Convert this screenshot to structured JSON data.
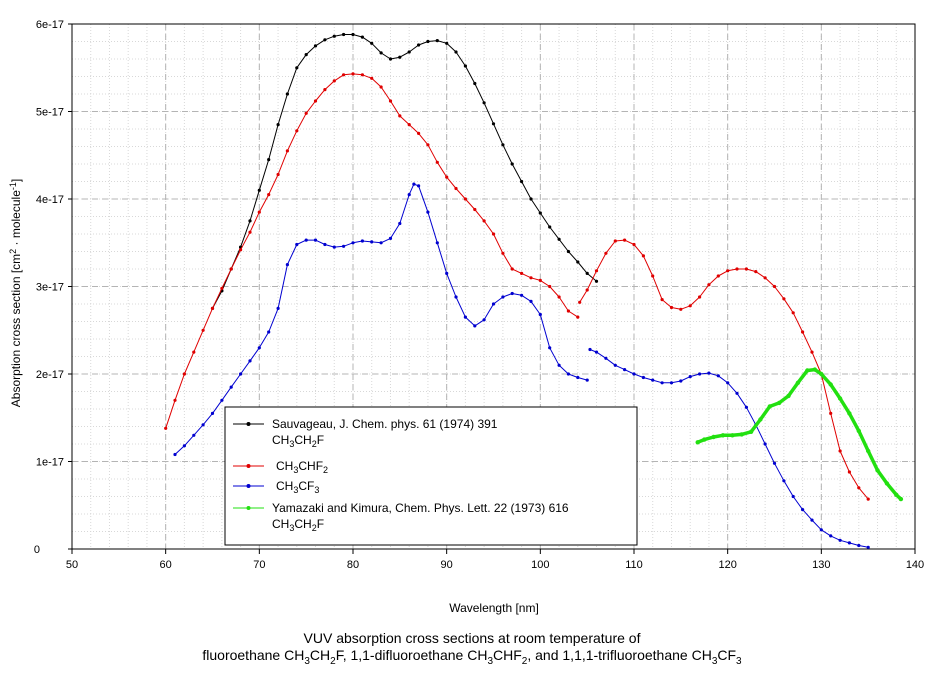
{
  "chart_data": {
    "type": "line",
    "xlabel": "Wavelength [nm]",
    "ylabel": "Absorption cross section [cm2 · molecule-1]",
    "xlim": [
      50,
      140
    ],
    "ylim": [
      0,
      6e-17
    ],
    "x_ticks": [
      50,
      60,
      70,
      80,
      90,
      100,
      110,
      120,
      130,
      140
    ],
    "y_ticks": [
      {
        "value": 0,
        "label": "0"
      },
      {
        "value": 1e-17,
        "label": "1e-17"
      },
      {
        "value": 2e-17,
        "label": "2e-17"
      },
      {
        "value": 3e-17,
        "label": "3e-17"
      },
      {
        "value": 4e-17,
        "label": "4e-17"
      },
      {
        "value": 5e-17,
        "label": "5e-17"
      },
      {
        "value": 6e-17,
        "label": "6e-17"
      }
    ],
    "grid": true,
    "legend_position": "lower-left",
    "series": [
      {
        "name": "Sauvageau, J. Chem. phys. 61 (1974) 391",
        "molecule": "CH3CH2F",
        "color": "#000000",
        "points": [
          [
            65.0,
            2.75e-17
          ],
          [
            66.0,
            2.95e-17
          ],
          [
            67.0,
            3.2e-17
          ],
          [
            68.0,
            3.45e-17
          ],
          [
            69.0,
            3.75e-17
          ],
          [
            70.0,
            4.1e-17
          ],
          [
            71.0,
            4.45e-17
          ],
          [
            72.0,
            4.85e-17
          ],
          [
            73.0,
            5.2e-17
          ],
          [
            74.0,
            5.5e-17
          ],
          [
            75.0,
            5.65e-17
          ],
          [
            76.0,
            5.75e-17
          ],
          [
            77.0,
            5.82e-17
          ],
          [
            78.0,
            5.86e-17
          ],
          [
            79.0,
            5.88e-17
          ],
          [
            80.0,
            5.88e-17
          ],
          [
            81.0,
            5.85e-17
          ],
          [
            82.0,
            5.78e-17
          ],
          [
            83.0,
            5.67e-17
          ],
          [
            84.0,
            5.6e-17
          ],
          [
            85.0,
            5.62e-17
          ],
          [
            86.0,
            5.68e-17
          ],
          [
            87.0,
            5.76e-17
          ],
          [
            88.0,
            5.8e-17
          ],
          [
            89.0,
            5.81e-17
          ],
          [
            90.0,
            5.78e-17
          ],
          [
            91.0,
            5.68e-17
          ],
          [
            92.0,
            5.52e-17
          ],
          [
            93.0,
            5.32e-17
          ],
          [
            94.0,
            5.1e-17
          ],
          [
            95.0,
            4.86e-17
          ],
          [
            96.0,
            4.62e-17
          ],
          [
            97.0,
            4.4e-17
          ],
          [
            98.0,
            4.2e-17
          ],
          [
            99.0,
            4e-17
          ],
          [
            100.0,
            3.84e-17
          ],
          [
            101.0,
            3.68e-17
          ],
          [
            102.0,
            3.54e-17
          ],
          [
            103.0,
            3.4e-17
          ],
          [
            104.0,
            3.28e-17
          ],
          [
            105.0,
            3.15e-17
          ],
          [
            106.0,
            3.06e-17
          ]
        ]
      },
      {
        "name": "CH3CHF2",
        "molecule": "",
        "color": "#e00000",
        "points": [
          [
            60.0,
            1.38e-17
          ],
          [
            61.0,
            1.7e-17
          ],
          [
            62.0,
            2e-17
          ],
          [
            63.0,
            2.25e-17
          ],
          [
            64.0,
            2.5e-17
          ],
          [
            65.0,
            2.75e-17
          ],
          [
            66.0,
            2.98e-17
          ],
          [
            67.0,
            3.2e-17
          ],
          [
            68.0,
            3.42e-17
          ],
          [
            69.0,
            3.62e-17
          ],
          [
            70.0,
            3.85e-17
          ],
          [
            71.0,
            4.05e-17
          ],
          [
            72.0,
            4.28e-17
          ],
          [
            73.0,
            4.55e-17
          ],
          [
            74.0,
            4.78e-17
          ],
          [
            75.0,
            4.98e-17
          ],
          [
            76.0,
            5.12e-17
          ],
          [
            77.0,
            5.25e-17
          ],
          [
            78.0,
            5.35e-17
          ],
          [
            79.0,
            5.42e-17
          ],
          [
            80.0,
            5.43e-17
          ],
          [
            81.0,
            5.42e-17
          ],
          [
            82.0,
            5.38e-17
          ],
          [
            83.0,
            5.28e-17
          ],
          [
            84.0,
            5.12e-17
          ],
          [
            85.0,
            4.95e-17
          ],
          [
            86.0,
            4.85e-17
          ],
          [
            87.0,
            4.75e-17
          ],
          [
            88.0,
            4.62e-17
          ],
          [
            89.0,
            4.42e-17
          ],
          [
            90.0,
            4.25e-17
          ],
          [
            91.0,
            4.12e-17
          ],
          [
            92.0,
            4e-17
          ],
          [
            93.0,
            3.88e-17
          ],
          [
            94.0,
            3.75e-17
          ],
          [
            95.0,
            3.6e-17
          ],
          [
            96.0,
            3.38e-17
          ],
          [
            97.0,
            3.2e-17
          ],
          [
            98.0,
            3.15e-17
          ],
          [
            99.0,
            3.1e-17
          ],
          [
            100.0,
            3.07e-17
          ],
          [
            101.0,
            3e-17
          ],
          [
            102.0,
            2.88e-17
          ],
          [
            103.0,
            2.72e-17
          ],
          [
            104.0,
            2.65e-17
          ],
          [
            104.2,
            2.82e-17
          ],
          [
            105.0,
            2.96e-17
          ],
          [
            106.0,
            3.18e-17
          ],
          [
            107.0,
            3.38e-17
          ],
          [
            108.0,
            3.52e-17
          ],
          [
            109.0,
            3.53e-17
          ],
          [
            110.0,
            3.48e-17
          ],
          [
            111.0,
            3.35e-17
          ],
          [
            112.0,
            3.12e-17
          ],
          [
            113.0,
            2.85e-17
          ],
          [
            114.0,
            2.76e-17
          ],
          [
            115.0,
            2.74e-17
          ],
          [
            116.0,
            2.78e-17
          ],
          [
            117.0,
            2.88e-17
          ],
          [
            118.0,
            3.02e-17
          ],
          [
            119.0,
            3.12e-17
          ],
          [
            120.0,
            3.18e-17
          ],
          [
            121.0,
            3.2e-17
          ],
          [
            122.0,
            3.2e-17
          ],
          [
            123.0,
            3.17e-17
          ],
          [
            124.0,
            3.1e-17
          ],
          [
            125.0,
            3e-17
          ],
          [
            126.0,
            2.86e-17
          ],
          [
            127.0,
            2.7e-17
          ],
          [
            128.0,
            2.48e-17
          ],
          [
            129.0,
            2.25e-17
          ],
          [
            130.0,
            2e-17
          ],
          [
            131.0,
            1.55e-17
          ],
          [
            132.0,
            1.12e-17
          ],
          [
            133.0,
            8.8e-18
          ],
          [
            134.0,
            7e-18
          ],
          [
            135.0,
            5.7e-18
          ]
        ]
      },
      {
        "name": "CH3CF3",
        "molecule": "",
        "color": "#0000d0",
        "points": [
          [
            61.0,
            1.08e-17
          ],
          [
            62.0,
            1.18e-17
          ],
          [
            63.0,
            1.3e-17
          ],
          [
            64.0,
            1.42e-17
          ],
          [
            65.0,
            1.55e-17
          ],
          [
            66.0,
            1.7e-17
          ],
          [
            67.0,
            1.85e-17
          ],
          [
            68.0,
            2e-17
          ],
          [
            69.0,
            2.15e-17
          ],
          [
            70.0,
            2.3e-17
          ],
          [
            71.0,
            2.48e-17
          ],
          [
            72.0,
            2.75e-17
          ],
          [
            73.0,
            3.25e-17
          ],
          [
            74.0,
            3.48e-17
          ],
          [
            75.0,
            3.53e-17
          ],
          [
            76.0,
            3.53e-17
          ],
          [
            77.0,
            3.48e-17
          ],
          [
            78.0,
            3.45e-17
          ],
          [
            79.0,
            3.46e-17
          ],
          [
            80.0,
            3.5e-17
          ],
          [
            81.0,
            3.52e-17
          ],
          [
            82.0,
            3.51e-17
          ],
          [
            83.0,
            3.5e-17
          ],
          [
            84.0,
            3.55e-17
          ],
          [
            85.0,
            3.72e-17
          ],
          [
            86.0,
            4.05e-17
          ],
          [
            86.5,
            4.17e-17
          ],
          [
            87.0,
            4.15e-17
          ],
          [
            88.0,
            3.85e-17
          ],
          [
            89.0,
            3.5e-17
          ],
          [
            90.0,
            3.15e-17
          ],
          [
            91.0,
            2.88e-17
          ],
          [
            92.0,
            2.65e-17
          ],
          [
            93.0,
            2.55e-17
          ],
          [
            94.0,
            2.62e-17
          ],
          [
            95.0,
            2.8e-17
          ],
          [
            96.0,
            2.88e-17
          ],
          [
            97.0,
            2.92e-17
          ],
          [
            98.0,
            2.9e-17
          ],
          [
            99.0,
            2.83e-17
          ],
          [
            100.0,
            2.68e-17
          ],
          [
            101.0,
            2.3e-17
          ],
          [
            102.0,
            2.1e-17
          ],
          [
            103.0,
            2e-17
          ],
          [
            104.0,
            1.96e-17
          ],
          [
            105.0,
            1.93e-17
          ],
          [
            105.3,
            2.28e-17
          ],
          [
            106.0,
            2.25e-17
          ],
          [
            107.0,
            2.18e-17
          ],
          [
            108.0,
            2.1e-17
          ],
          [
            109.0,
            2.05e-17
          ],
          [
            110.0,
            2e-17
          ],
          [
            111.0,
            1.96e-17
          ],
          [
            112.0,
            1.93e-17
          ],
          [
            113.0,
            1.9e-17
          ],
          [
            114.0,
            1.9e-17
          ],
          [
            115.0,
            1.92e-17
          ],
          [
            116.0,
            1.97e-17
          ],
          [
            117.0,
            2e-17
          ],
          [
            118.0,
            2.01e-17
          ],
          [
            119.0,
            1.98e-17
          ],
          [
            120.0,
            1.9e-17
          ],
          [
            121.0,
            1.78e-17
          ],
          [
            122.0,
            1.62e-17
          ],
          [
            123.0,
            1.42e-17
          ],
          [
            124.0,
            1.2e-17
          ],
          [
            125.0,
            9.8e-18
          ],
          [
            126.0,
            7.8e-18
          ],
          [
            127.0,
            6e-18
          ],
          [
            128.0,
            4.5e-18
          ],
          [
            129.0,
            3.3e-18
          ],
          [
            130.0,
            2.2e-18
          ],
          [
            131.0,
            1.5e-18
          ],
          [
            132.0,
            1e-18
          ],
          [
            133.0,
            7e-19
          ],
          [
            134.0,
            4e-19
          ],
          [
            135.0,
            2e-19
          ]
        ]
      },
      {
        "name": "Yamazaki and Kimura, Chem. Phys. Lett. 22 (1973) 616",
        "molecule": "CH3CH2F",
        "color": "#22e010",
        "points": [
          [
            116.8,
            1.22e-17
          ],
          [
            117.5,
            1.25e-17
          ],
          [
            118.5,
            1.28e-17
          ],
          [
            119.5,
            1.3e-17
          ],
          [
            120.5,
            1.3e-17
          ],
          [
            121.5,
            1.31e-17
          ],
          [
            122.5,
            1.34e-17
          ],
          [
            123.5,
            1.48e-17
          ],
          [
            124.5,
            1.63e-17
          ],
          [
            125.5,
            1.67e-17
          ],
          [
            126.5,
            1.75e-17
          ],
          [
            127.5,
            1.9e-17
          ],
          [
            128.5,
            2.04e-17
          ],
          [
            129.3,
            2.05e-17
          ],
          [
            130.0,
            2e-17
          ],
          [
            131.0,
            1.88e-17
          ],
          [
            132.0,
            1.72e-17
          ],
          [
            133.0,
            1.55e-17
          ],
          [
            134.0,
            1.35e-17
          ],
          [
            135.0,
            1.12e-17
          ],
          [
            136.0,
            9e-18
          ],
          [
            137.0,
            7.5e-18
          ],
          [
            138.0,
            6.2e-18
          ],
          [
            138.5,
            5.7e-18
          ]
        ]
      }
    ]
  },
  "legend": [
    {
      "line1": "Sauvageau, J. Chem. phys. 61 (1974) 391",
      "formula": "CH3CH2F"
    },
    {
      "line1": "",
      "formula": "CH3CHF2"
    },
    {
      "line1": "",
      "formula": "CH3CF3"
    },
    {
      "line1": "Yamazaki and Kimura, Chem. Phys. Lett. 22 (1973) 616",
      "formula": "CH3CH2F"
    }
  ],
  "axis": {
    "y_title_main": "Absorption cross section [cm",
    "y_title_sup1": "2",
    "y_title_mid": " · molecule",
    "y_title_sup2": "-1",
    "y_title_end": "]"
  },
  "caption": {
    "line1": "VUV absorption cross sections at room temperature of",
    "part1": "fluoroethane CH",
    "sub1": "3",
    "part2": "CH",
    "sub2": "2",
    "part3": "F, 1,1-difluoroethane CH",
    "sub3": "3",
    "part4": "CHF",
    "sub4": "2",
    "part5": ", and 1,1,1-trifluoroethane CH",
    "sub5": "3",
    "part6": "CF",
    "sub6": "3"
  }
}
